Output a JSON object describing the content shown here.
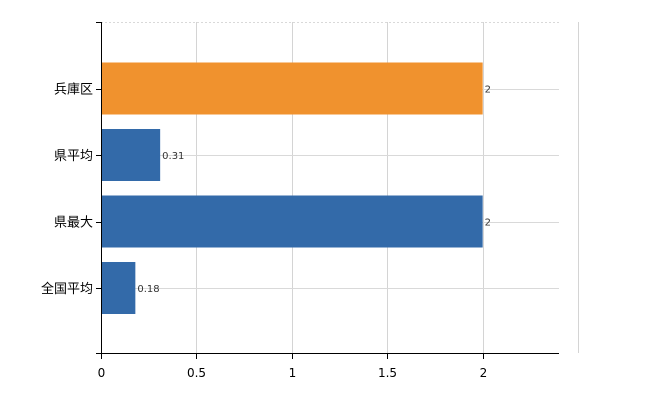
{
  "chart_data": {
    "type": "bar",
    "orientation": "horizontal",
    "categories": [
      "兵庫区",
      "県平均",
      "県最大",
      "全国平均"
    ],
    "values": [
      2,
      0.31,
      2,
      0.18
    ],
    "data_labels": [
      "2",
      "0.31",
      "2",
      "0.18"
    ],
    "highlight_index": 0,
    "colors": {
      "highlight": "#f0922e",
      "default": "#336aa9"
    },
    "xlim": [
      0,
      2.4
    ],
    "x_ticks": [
      0,
      0.5,
      1,
      1.5,
      2
    ],
    "x_tick_labels": [
      "0",
      "0.5",
      "1",
      "1.5",
      "2"
    ],
    "grid": true,
    "legend": "none"
  }
}
